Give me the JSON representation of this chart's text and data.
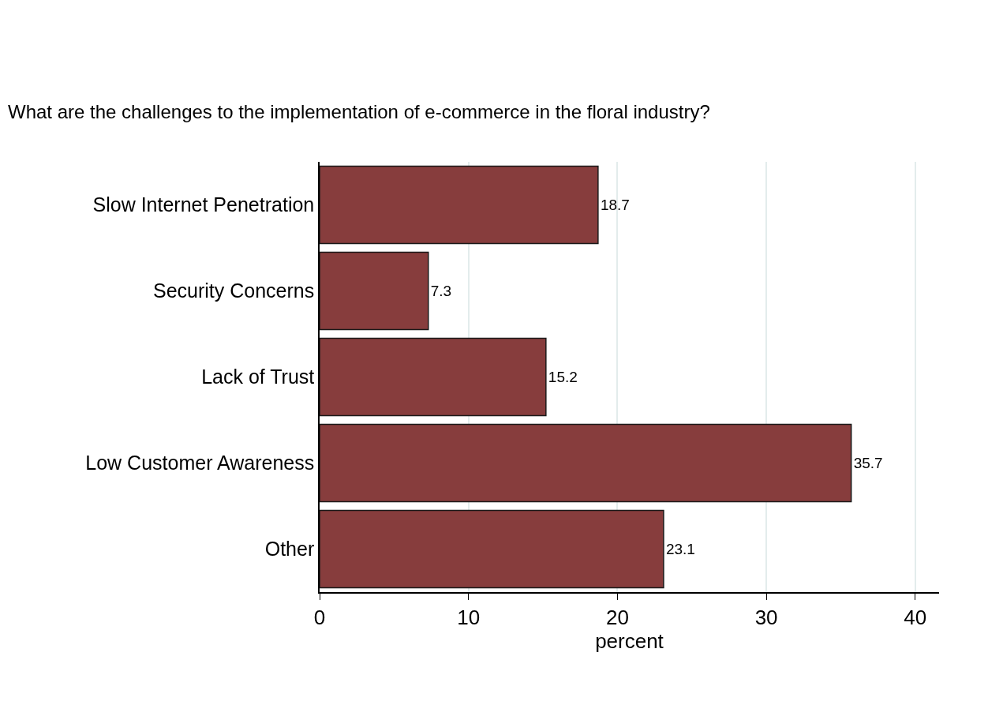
{
  "chart_data": {
    "type": "bar",
    "orientation": "horizontal",
    "title": "What are the challenges to the implementation of e-commerce in the floral industry?",
    "categories": [
      "Slow Internet Penetration",
      "Security Concerns",
      "Lack of Trust",
      "Low Customer Awareness",
      "Other"
    ],
    "values": [
      18.7,
      7.3,
      15.2,
      35.7,
      23.1
    ],
    "color": "#873d3d",
    "xlabel": "percent",
    "xlim": [
      0,
      41.6
    ],
    "xticks": [
      0,
      10,
      20,
      30,
      40
    ],
    "grid": "x",
    "data_labels": true
  }
}
